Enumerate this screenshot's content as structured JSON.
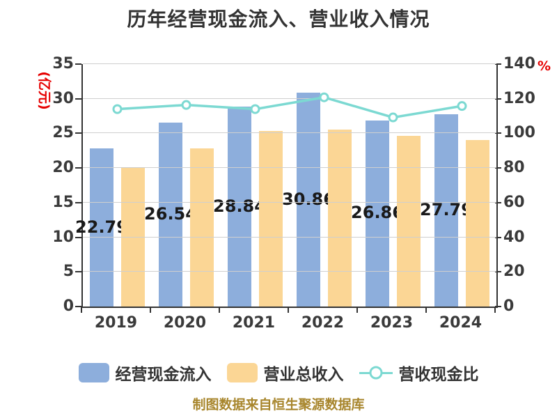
{
  "title": "历年经营现金流入、营业收入情况",
  "footer": {
    "text": "制图数据来自恒生聚源数据库",
    "color": "#A8862D"
  },
  "colors": {
    "bar_blue": "#8DAEDC",
    "bar_orange": "#FBD695",
    "line_cyan": "#7CD9D2",
    "grid": "#CFCFCF",
    "axis": "#333333",
    "axis_name_red": "#E60000",
    "text": "#3A3A3A"
  },
  "chart_data": {
    "type": "bar",
    "subtype": "grouped-bars-with-line",
    "title": "历年经营现金流入、营业收入情况",
    "categories": [
      "2019",
      "2020",
      "2021",
      "2022",
      "2023",
      "2024"
    ],
    "series": [
      {
        "name": "经营现金流入",
        "type": "bar",
        "axis": "left",
        "color": "#8DAEDC",
        "values": [
          22.79,
          26.54,
          28.84,
          30.86,
          26.86,
          27.79
        ],
        "labels": [
          "22.79",
          "26.54",
          "28.84",
          "30.86",
          "26.86",
          "27.79"
        ]
      },
      {
        "name": "营业总收入",
        "type": "bar",
        "axis": "left",
        "color": "#FBD695",
        "values": [
          20.0,
          22.8,
          25.3,
          25.5,
          24.6,
          24.0
        ]
      },
      {
        "name": "营收现金比",
        "type": "line",
        "axis": "right",
        "color": "#7CD9D2",
        "marker": "circle-white-fill",
        "values": [
          114.0,
          116.4,
          114.0,
          120.8,
          109.2,
          115.8
        ]
      }
    ],
    "y_left": {
      "name": "(亿元)",
      "min": 0,
      "max": 35,
      "step": 5,
      "ticks": [
        0,
        5,
        10,
        15,
        20,
        25,
        30,
        35
      ]
    },
    "y_right": {
      "name": "%",
      "min": 0,
      "max": 140,
      "step": 20,
      "ticks": [
        0,
        20,
        40,
        60,
        80,
        100,
        120,
        140
      ]
    },
    "grid": true,
    "legend_position": "bottom"
  }
}
